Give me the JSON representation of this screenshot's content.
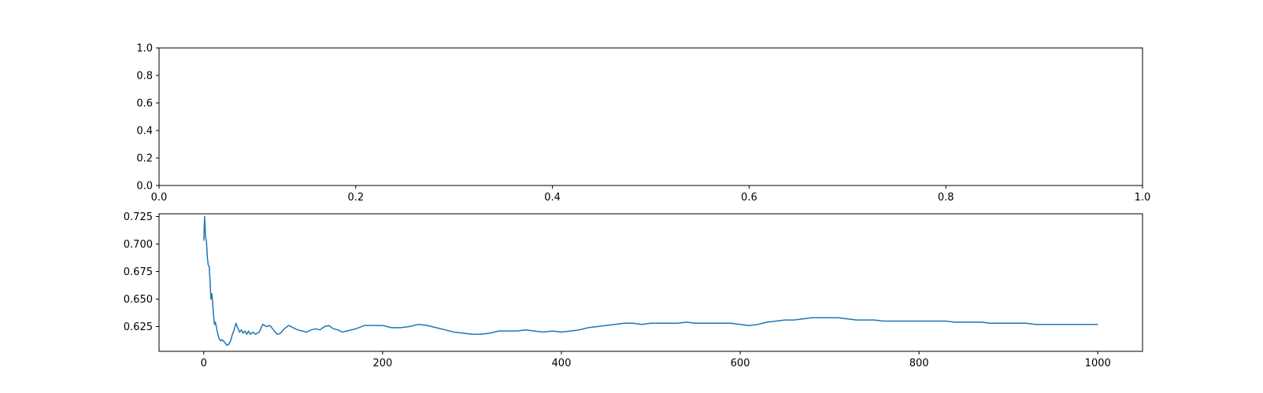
{
  "chart_data": [
    {
      "type": "empty",
      "xlim": [
        0.0,
        1.0
      ],
      "ylim": [
        0.0,
        1.0
      ],
      "x_ticks": [
        0.0,
        0.2,
        0.4,
        0.6,
        0.8,
        1.0
      ],
      "y_ticks": [
        0.0,
        0.2,
        0.4,
        0.6,
        0.8,
        1.0
      ],
      "x_tick_labels": [
        "0.0",
        "0.2",
        "0.4",
        "0.6",
        "0.8",
        "1.0"
      ],
      "y_tick_labels": [
        "0.0",
        "0.2",
        "0.4",
        "0.6",
        "0.8",
        "1.0"
      ],
      "grid": false
    },
    {
      "type": "line",
      "xlim": [
        -50,
        1050
      ],
      "ylim": [
        0.6025,
        0.7275
      ],
      "x_ticks": [
        0,
        200,
        400,
        600,
        800,
        1000
      ],
      "y_ticks": [
        0.625,
        0.65,
        0.675,
        0.7,
        0.725
      ],
      "x_tick_labels": [
        "0",
        "200",
        "400",
        "600",
        "800",
        "1000"
      ],
      "y_tick_labels": [
        "0.625",
        "0.650",
        "0.675",
        "0.700",
        "0.725"
      ],
      "grid": false,
      "series": [
        {
          "color": "#1f77b4",
          "x": [
            0,
            1,
            2,
            3,
            4,
            5,
            6,
            7,
            8,
            9,
            10,
            11,
            12,
            13,
            14,
            15,
            17,
            19,
            20,
            22,
            24,
            25,
            26,
            28,
            30,
            32,
            34,
            36,
            38,
            40,
            42,
            44,
            46,
            48,
            50,
            52,
            55,
            58,
            62,
            66,
            70,
            74,
            78,
            82,
            86,
            90,
            95,
            100,
            105,
            110,
            115,
            120,
            125,
            130,
            135,
            140,
            145,
            150,
            155,
            160,
            170,
            180,
            190,
            200,
            210,
            220,
            230,
            240,
            250,
            260,
            270,
            280,
            290,
            300,
            310,
            320,
            330,
            340,
            350,
            360,
            370,
            380,
            390,
            400,
            410,
            420,
            430,
            440,
            450,
            460,
            470,
            480,
            490,
            500,
            510,
            520,
            530,
            540,
            550,
            560,
            570,
            580,
            590,
            600,
            610,
            620,
            630,
            640,
            650,
            660,
            670,
            680,
            690,
            700,
            710,
            720,
            730,
            740,
            750,
            760,
            770,
            780,
            790,
            800,
            810,
            820,
            830,
            840,
            850,
            860,
            870,
            880,
            890,
            900,
            910,
            920,
            930,
            940,
            950,
            960,
            970,
            980,
            990,
            1000
          ],
          "y": [
            0.703,
            0.725,
            0.706,
            0.703,
            0.688,
            0.681,
            0.68,
            0.667,
            0.65,
            0.655,
            0.646,
            0.635,
            0.627,
            0.629,
            0.625,
            0.621,
            0.614,
            0.612,
            0.613,
            0.612,
            0.61,
            0.609,
            0.608,
            0.609,
            0.612,
            0.618,
            0.622,
            0.628,
            0.624,
            0.62,
            0.622,
            0.619,
            0.621,
            0.618,
            0.621,
            0.618,
            0.62,
            0.618,
            0.62,
            0.627,
            0.625,
            0.626,
            0.622,
            0.618,
            0.619,
            0.623,
            0.626,
            0.624,
            0.622,
            0.621,
            0.62,
            0.622,
            0.623,
            0.622,
            0.625,
            0.626,
            0.623,
            0.622,
            0.62,
            0.621,
            0.623,
            0.626,
            0.626,
            0.626,
            0.624,
            0.624,
            0.625,
            0.627,
            0.626,
            0.624,
            0.622,
            0.62,
            0.619,
            0.618,
            0.618,
            0.619,
            0.621,
            0.621,
            0.621,
            0.622,
            0.621,
            0.62,
            0.621,
            0.62,
            0.621,
            0.622,
            0.624,
            0.625,
            0.626,
            0.627,
            0.628,
            0.628,
            0.627,
            0.628,
            0.628,
            0.628,
            0.628,
            0.629,
            0.628,
            0.628,
            0.628,
            0.628,
            0.628,
            0.627,
            0.626,
            0.627,
            0.629,
            0.63,
            0.631,
            0.631,
            0.632,
            0.633,
            0.633,
            0.633,
            0.633,
            0.632,
            0.631,
            0.631,
            0.631,
            0.63,
            0.63,
            0.63,
            0.63,
            0.63,
            0.63,
            0.63,
            0.63,
            0.629,
            0.629,
            0.629,
            0.629,
            0.628,
            0.628,
            0.628,
            0.628,
            0.628,
            0.627,
            0.627,
            0.627,
            0.627,
            0.627,
            0.627,
            0.627,
            0.627
          ]
        }
      ]
    }
  ]
}
